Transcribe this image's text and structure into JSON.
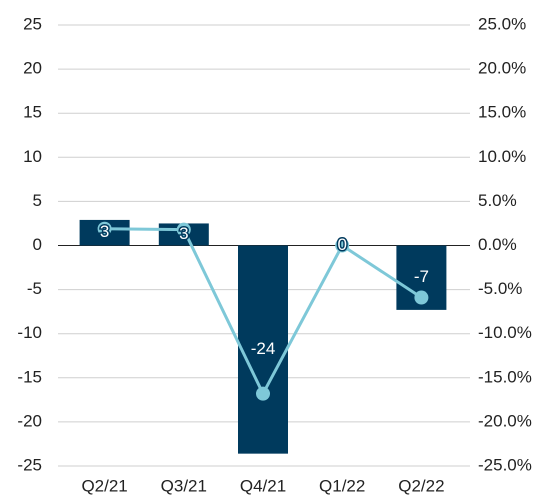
{
  "chart_data": {
    "type": "combo",
    "categories": [
      "Q2/21",
      "Q3/21",
      "Q4/21",
      "Q1/22",
      "Q2/22"
    ],
    "series": [
      {
        "type": "bar",
        "color": "#003a5d",
        "values": [
          2.9,
          2.5,
          -23.6,
          0,
          -7.3
        ],
        "value_labels": [
          "3",
          "3",
          "-24",
          "0",
          "-7"
        ]
      },
      {
        "type": "line",
        "axis": "y2",
        "color": "#7ec8d8",
        "values": [
          1.9,
          1.8,
          -16.8,
          0,
          -5.9
        ]
      }
    ],
    "ylim": [
      -25,
      25
    ],
    "yticks": [
      -25,
      -20,
      -15,
      -10,
      -5,
      0,
      5,
      10,
      15,
      20,
      25
    ],
    "y2lim": [
      -25,
      25
    ],
    "y2ticks": [
      {
        "value": -25,
        "label": "-25.0%"
      },
      {
        "value": -20,
        "label": "-20.0%"
      },
      {
        "value": -15,
        "label": "-15.0%"
      },
      {
        "value": -10,
        "label": "-10.0%"
      },
      {
        "value": -5,
        "label": "-5.0%"
      },
      {
        "value": 0,
        "label": "0.0%"
      },
      {
        "value": 5,
        "label": "5.0%"
      },
      {
        "value": 10,
        "label": "10.0%"
      },
      {
        "value": 15,
        "label": "15.0%"
      },
      {
        "value": 20,
        "label": "20.0%"
      },
      {
        "value": 25,
        "label": "25.0%"
      }
    ],
    "grid": true
  }
}
